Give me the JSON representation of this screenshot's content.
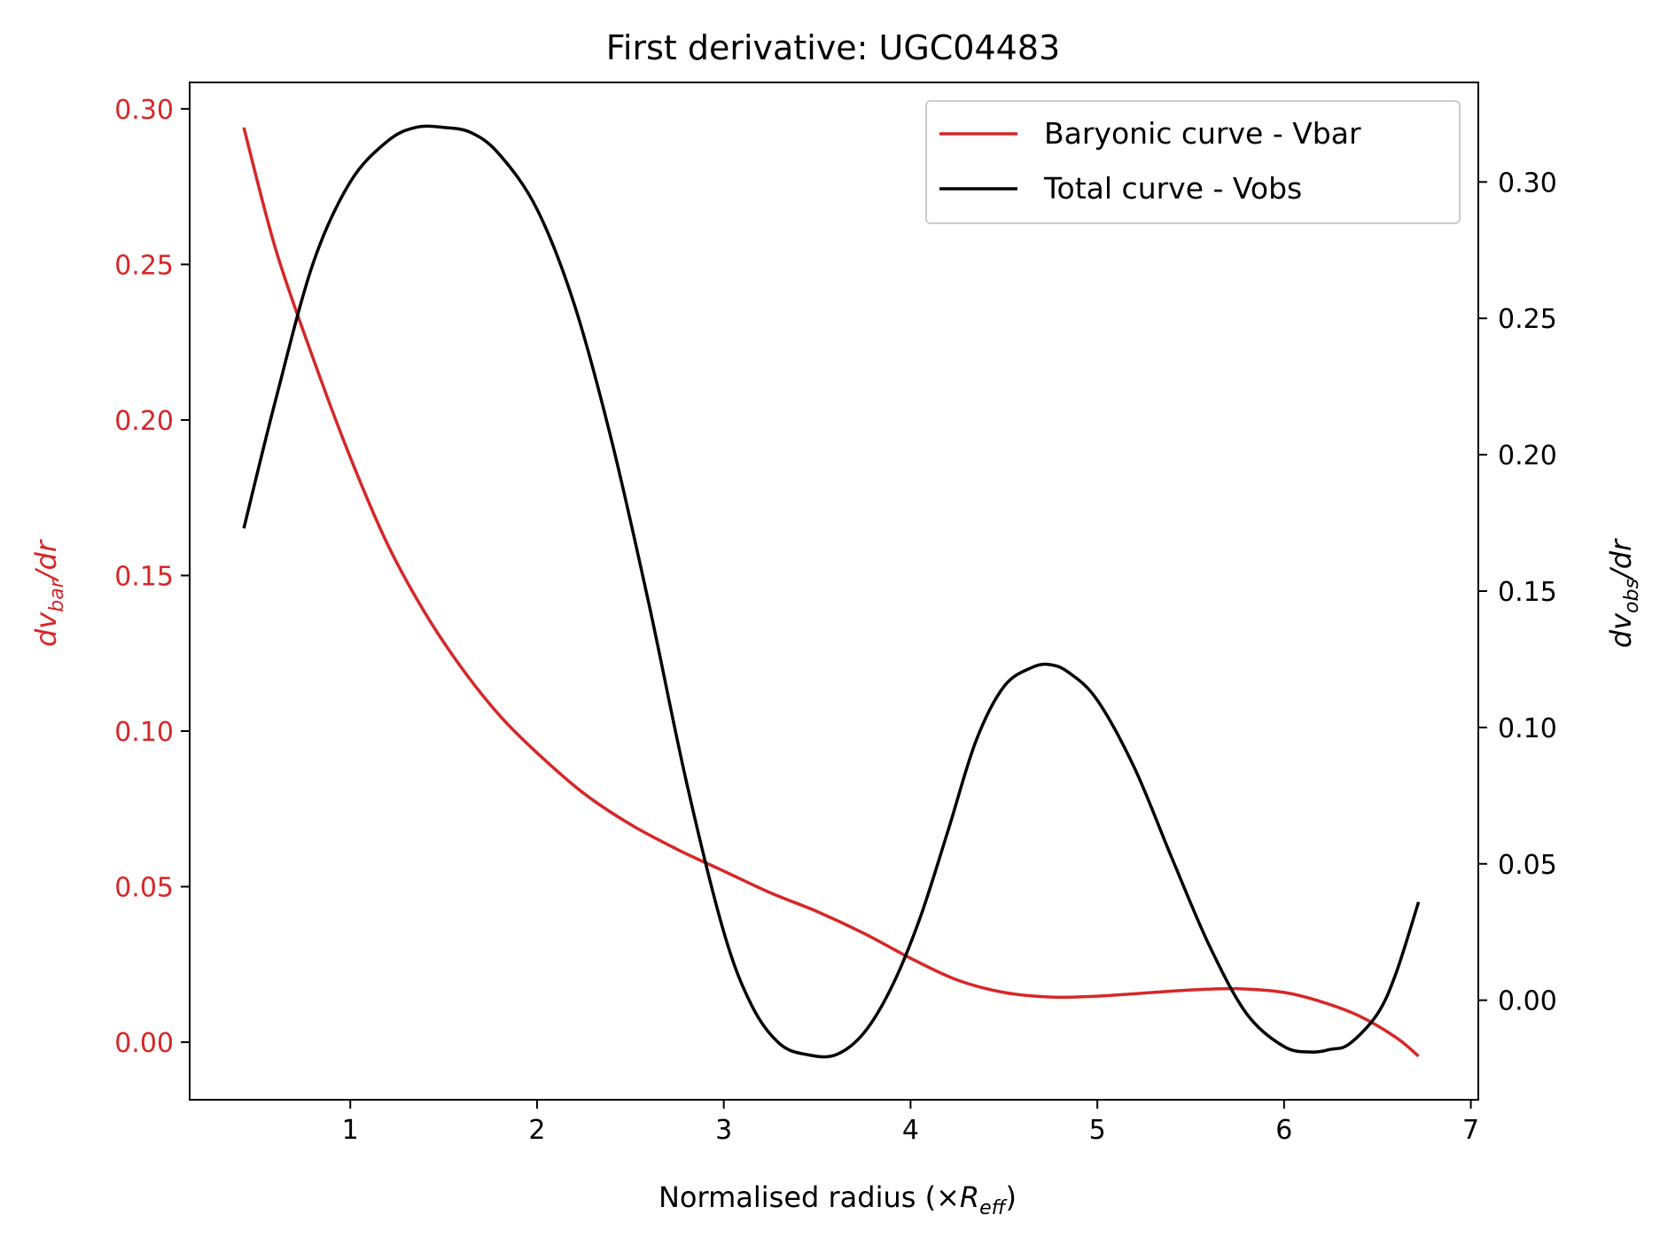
{
  "chart_data": {
    "type": "line",
    "title": "First derivative: UGC04483",
    "xlabel": {
      "main": "Normalised radius (×",
      "var": "R",
      "sub": "eff",
      "tail": ")"
    },
    "ylabel_left": {
      "pre": "dv",
      "sub": "bar",
      "post": "/dr",
      "color": "#d62728"
    },
    "ylabel_right": {
      "pre": "dv",
      "sub": "obs",
      "post": "/dr",
      "color": "#000000"
    },
    "xlim": [
      0.14,
      7.04
    ],
    "ylim_left": [
      -0.0185,
      0.3085
    ],
    "ylim_right": [
      -0.0365,
      0.3365
    ],
    "x_ticks": [
      1,
      2,
      3,
      4,
      5,
      6,
      7
    ],
    "x_tick_labels": [
      "1",
      "2",
      "3",
      "4",
      "5",
      "6",
      "7"
    ],
    "y_left_ticks": [
      0.0,
      0.05,
      0.1,
      0.15,
      0.2,
      0.25,
      0.3
    ],
    "y_left_tick_labels": [
      "0.00",
      "0.05",
      "0.10",
      "0.15",
      "0.20",
      "0.25",
      "0.30"
    ],
    "y_right_ticks": [
      0.0,
      0.05,
      0.1,
      0.15,
      0.2,
      0.25,
      0.3
    ],
    "y_right_tick_labels": [
      "0.00",
      "0.05",
      "0.10",
      "0.15",
      "0.20",
      "0.25",
      "0.30"
    ],
    "legend_position": "top-right",
    "grid": false,
    "series": [
      {
        "name": "Baryonic curve - Vbar",
        "axis": "left",
        "color": "#d62728",
        "x": [
          0.43,
          0.6,
          0.8,
          1.0,
          1.2,
          1.4,
          1.6,
          1.8,
          2.0,
          2.25,
          2.5,
          2.75,
          3.0,
          3.25,
          3.5,
          3.75,
          4.0,
          4.25,
          4.5,
          4.75,
          5.0,
          5.25,
          5.5,
          5.75,
          6.0,
          6.2,
          6.4,
          6.6,
          6.72
        ],
        "y": [
          0.294,
          0.255,
          0.22,
          0.188,
          0.16,
          0.138,
          0.12,
          0.105,
          0.093,
          0.08,
          0.07,
          0.062,
          0.055,
          0.048,
          0.042,
          0.035,
          0.027,
          0.02,
          0.016,
          0.0145,
          0.0148,
          0.0158,
          0.0168,
          0.0172,
          0.016,
          0.013,
          0.0085,
          0.0015,
          -0.0045
        ]
      },
      {
        "name": "Total curve - Vobs",
        "axis": "right",
        "color": "#000000",
        "x": [
          0.43,
          0.6,
          0.8,
          1.0,
          1.2,
          1.35,
          1.5,
          1.65,
          1.8,
          2.0,
          2.2,
          2.4,
          2.6,
          2.8,
          3.0,
          3.15,
          3.3,
          3.45,
          3.6,
          3.75,
          3.9,
          4.05,
          4.2,
          4.35,
          4.5,
          4.65,
          4.75,
          4.85,
          5.0,
          5.2,
          5.4,
          5.6,
          5.8,
          6.0,
          6.15,
          6.25,
          6.35,
          6.5,
          6.6,
          6.72
        ],
        "y": [
          0.173,
          0.22,
          0.27,
          0.3,
          0.315,
          0.32,
          0.32,
          0.318,
          0.31,
          0.29,
          0.255,
          0.205,
          0.145,
          0.08,
          0.025,
          -0.002,
          -0.016,
          -0.02,
          -0.02,
          -0.012,
          0.005,
          0.03,
          0.062,
          0.095,
          0.115,
          0.122,
          0.123,
          0.12,
          0.11,
          0.085,
          0.052,
          0.02,
          -0.005,
          -0.017,
          -0.019,
          -0.018,
          -0.016,
          -0.005,
          0.01,
          0.036
        ]
      }
    ]
  },
  "colors": {
    "vbar": "#d62728",
    "vobs": "#000000",
    "frame": "#000000",
    "background": "#ffffff"
  }
}
